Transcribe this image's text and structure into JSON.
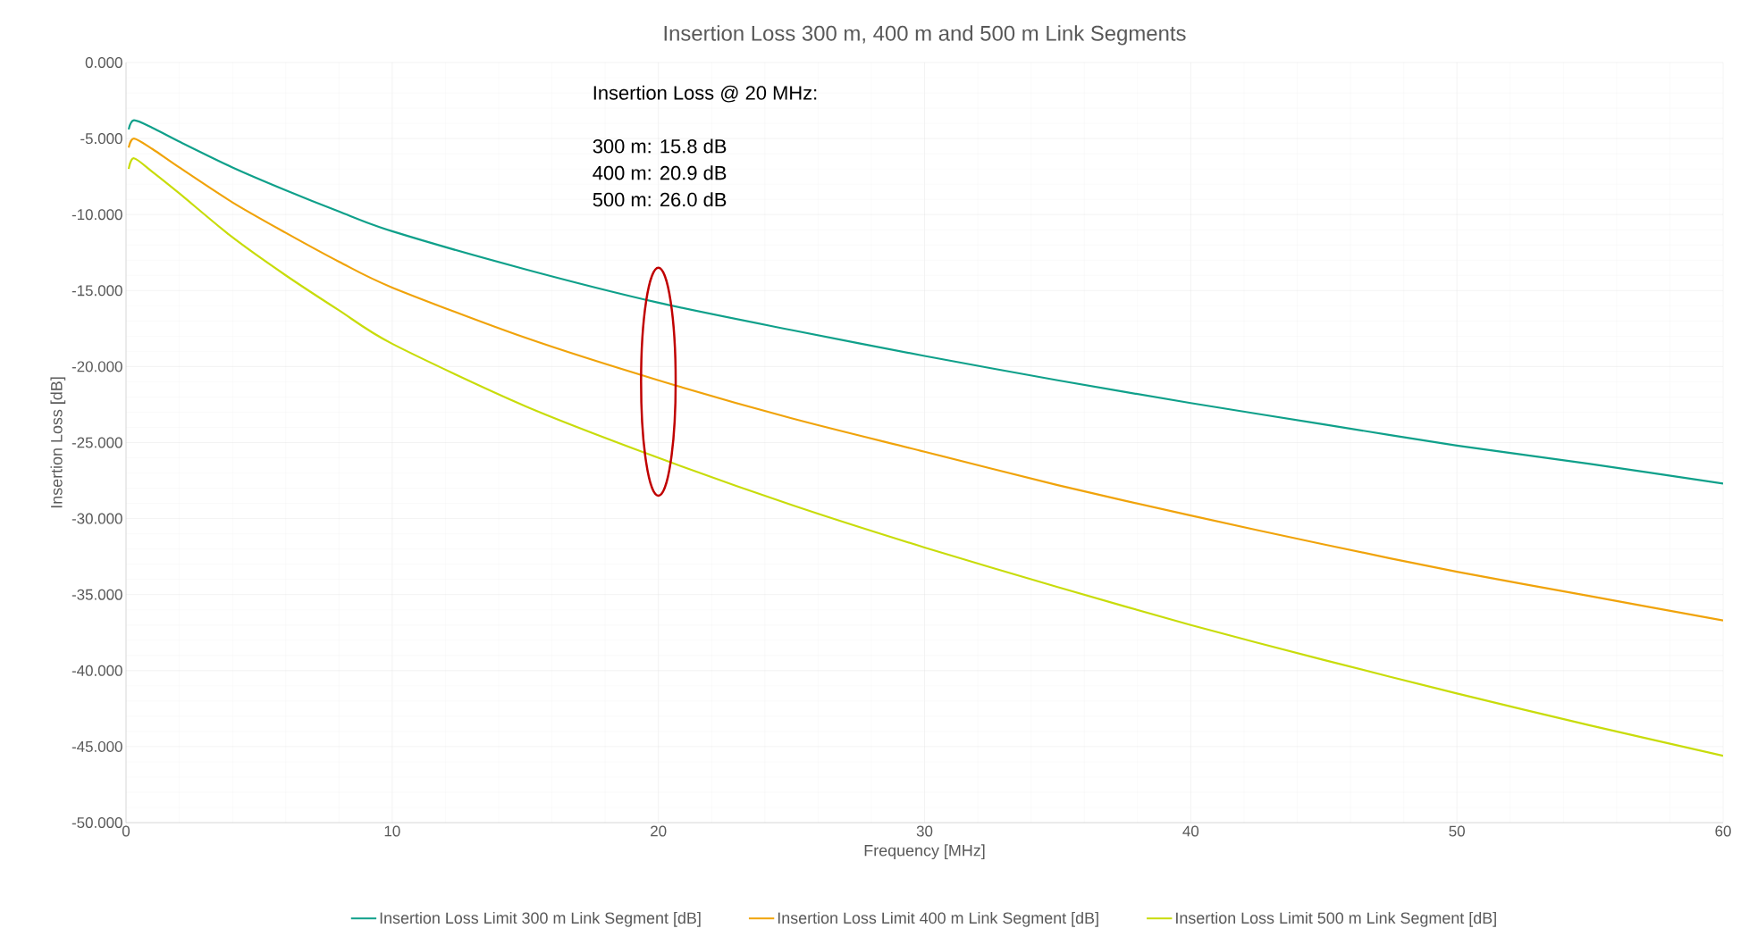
{
  "chart_data": {
    "type": "line",
    "title": "Insertion Loss 300 m, 400 m and 500 m Link Segments",
    "xlabel": "Frequency [MHz]",
    "ylabel": "Insertion Loss [dB]",
    "x": [
      0.1,
      0.3,
      1,
      2,
      4,
      6,
      8,
      10,
      15,
      20,
      25,
      30,
      35,
      40,
      45,
      50,
      55,
      60
    ],
    "series": [
      {
        "name": "Insertion Loss Limit 300 m Link Segment [dB]",
        "color": "#0fa08a",
        "values": [
          -4.4,
          -3.8,
          -4.3,
          -5.2,
          -6.9,
          -8.4,
          -9.8,
          -11.1,
          -13.6,
          -15.8,
          -17.6,
          -19.3,
          -20.9,
          -22.4,
          -23.8,
          -25.2,
          -26.4,
          -27.7
        ]
      },
      {
        "name": "Insertion Loss Limit 400 m Link Segment [dB]",
        "color": "#f0a30a",
        "values": [
          -5.6,
          -5.0,
          -5.7,
          -6.9,
          -9.2,
          -11.2,
          -13.1,
          -14.8,
          -18.1,
          -20.9,
          -23.4,
          -25.6,
          -27.8,
          -29.8,
          -31.7,
          -33.5,
          -35.1,
          -36.7
        ]
      },
      {
        "name": "Insertion Loss Limit 500 m Link Segment [dB]",
        "color": "#c8dc0a",
        "values": [
          -7.0,
          -6.3,
          -7.2,
          -8.6,
          -11.5,
          -14.0,
          -16.3,
          -18.5,
          -22.6,
          -26.0,
          -29.1,
          -31.9,
          -34.5,
          -37.0,
          -39.3,
          -41.5,
          -43.6,
          -45.6
        ]
      }
    ],
    "xlim": [
      0,
      60
    ],
    "xticks": [
      0,
      10,
      20,
      30,
      40,
      50,
      60
    ],
    "ylim": [
      -50,
      0
    ],
    "yticks": [
      {
        "value": -50,
        "label": "-50.000"
      },
      {
        "value": -45,
        "label": "-45.000"
      },
      {
        "value": -40,
        "label": "-40.000"
      },
      {
        "value": -35,
        "label": "-35.000"
      },
      {
        "value": -30,
        "label": "-30.000"
      },
      {
        "value": -25,
        "label": "-25.000"
      },
      {
        "value": -20,
        "label": "-20.000"
      },
      {
        "value": -15,
        "label": "-15.000"
      },
      {
        "value": -10,
        "label": "-10.000"
      },
      {
        "value": -5,
        "label": "-5.000"
      },
      {
        "value": 0,
        "label": "0.000"
      }
    ],
    "annotations": [
      "Insertion Loss @ 20 MHz:",
      "300 m: 15.8 dB",
      "400 m: 20.9 dB",
      "500 m: 26.0 dB"
    ],
    "grid": true,
    "legend": "bottom",
    "line_style": "solid",
    "marker": "none"
  }
}
